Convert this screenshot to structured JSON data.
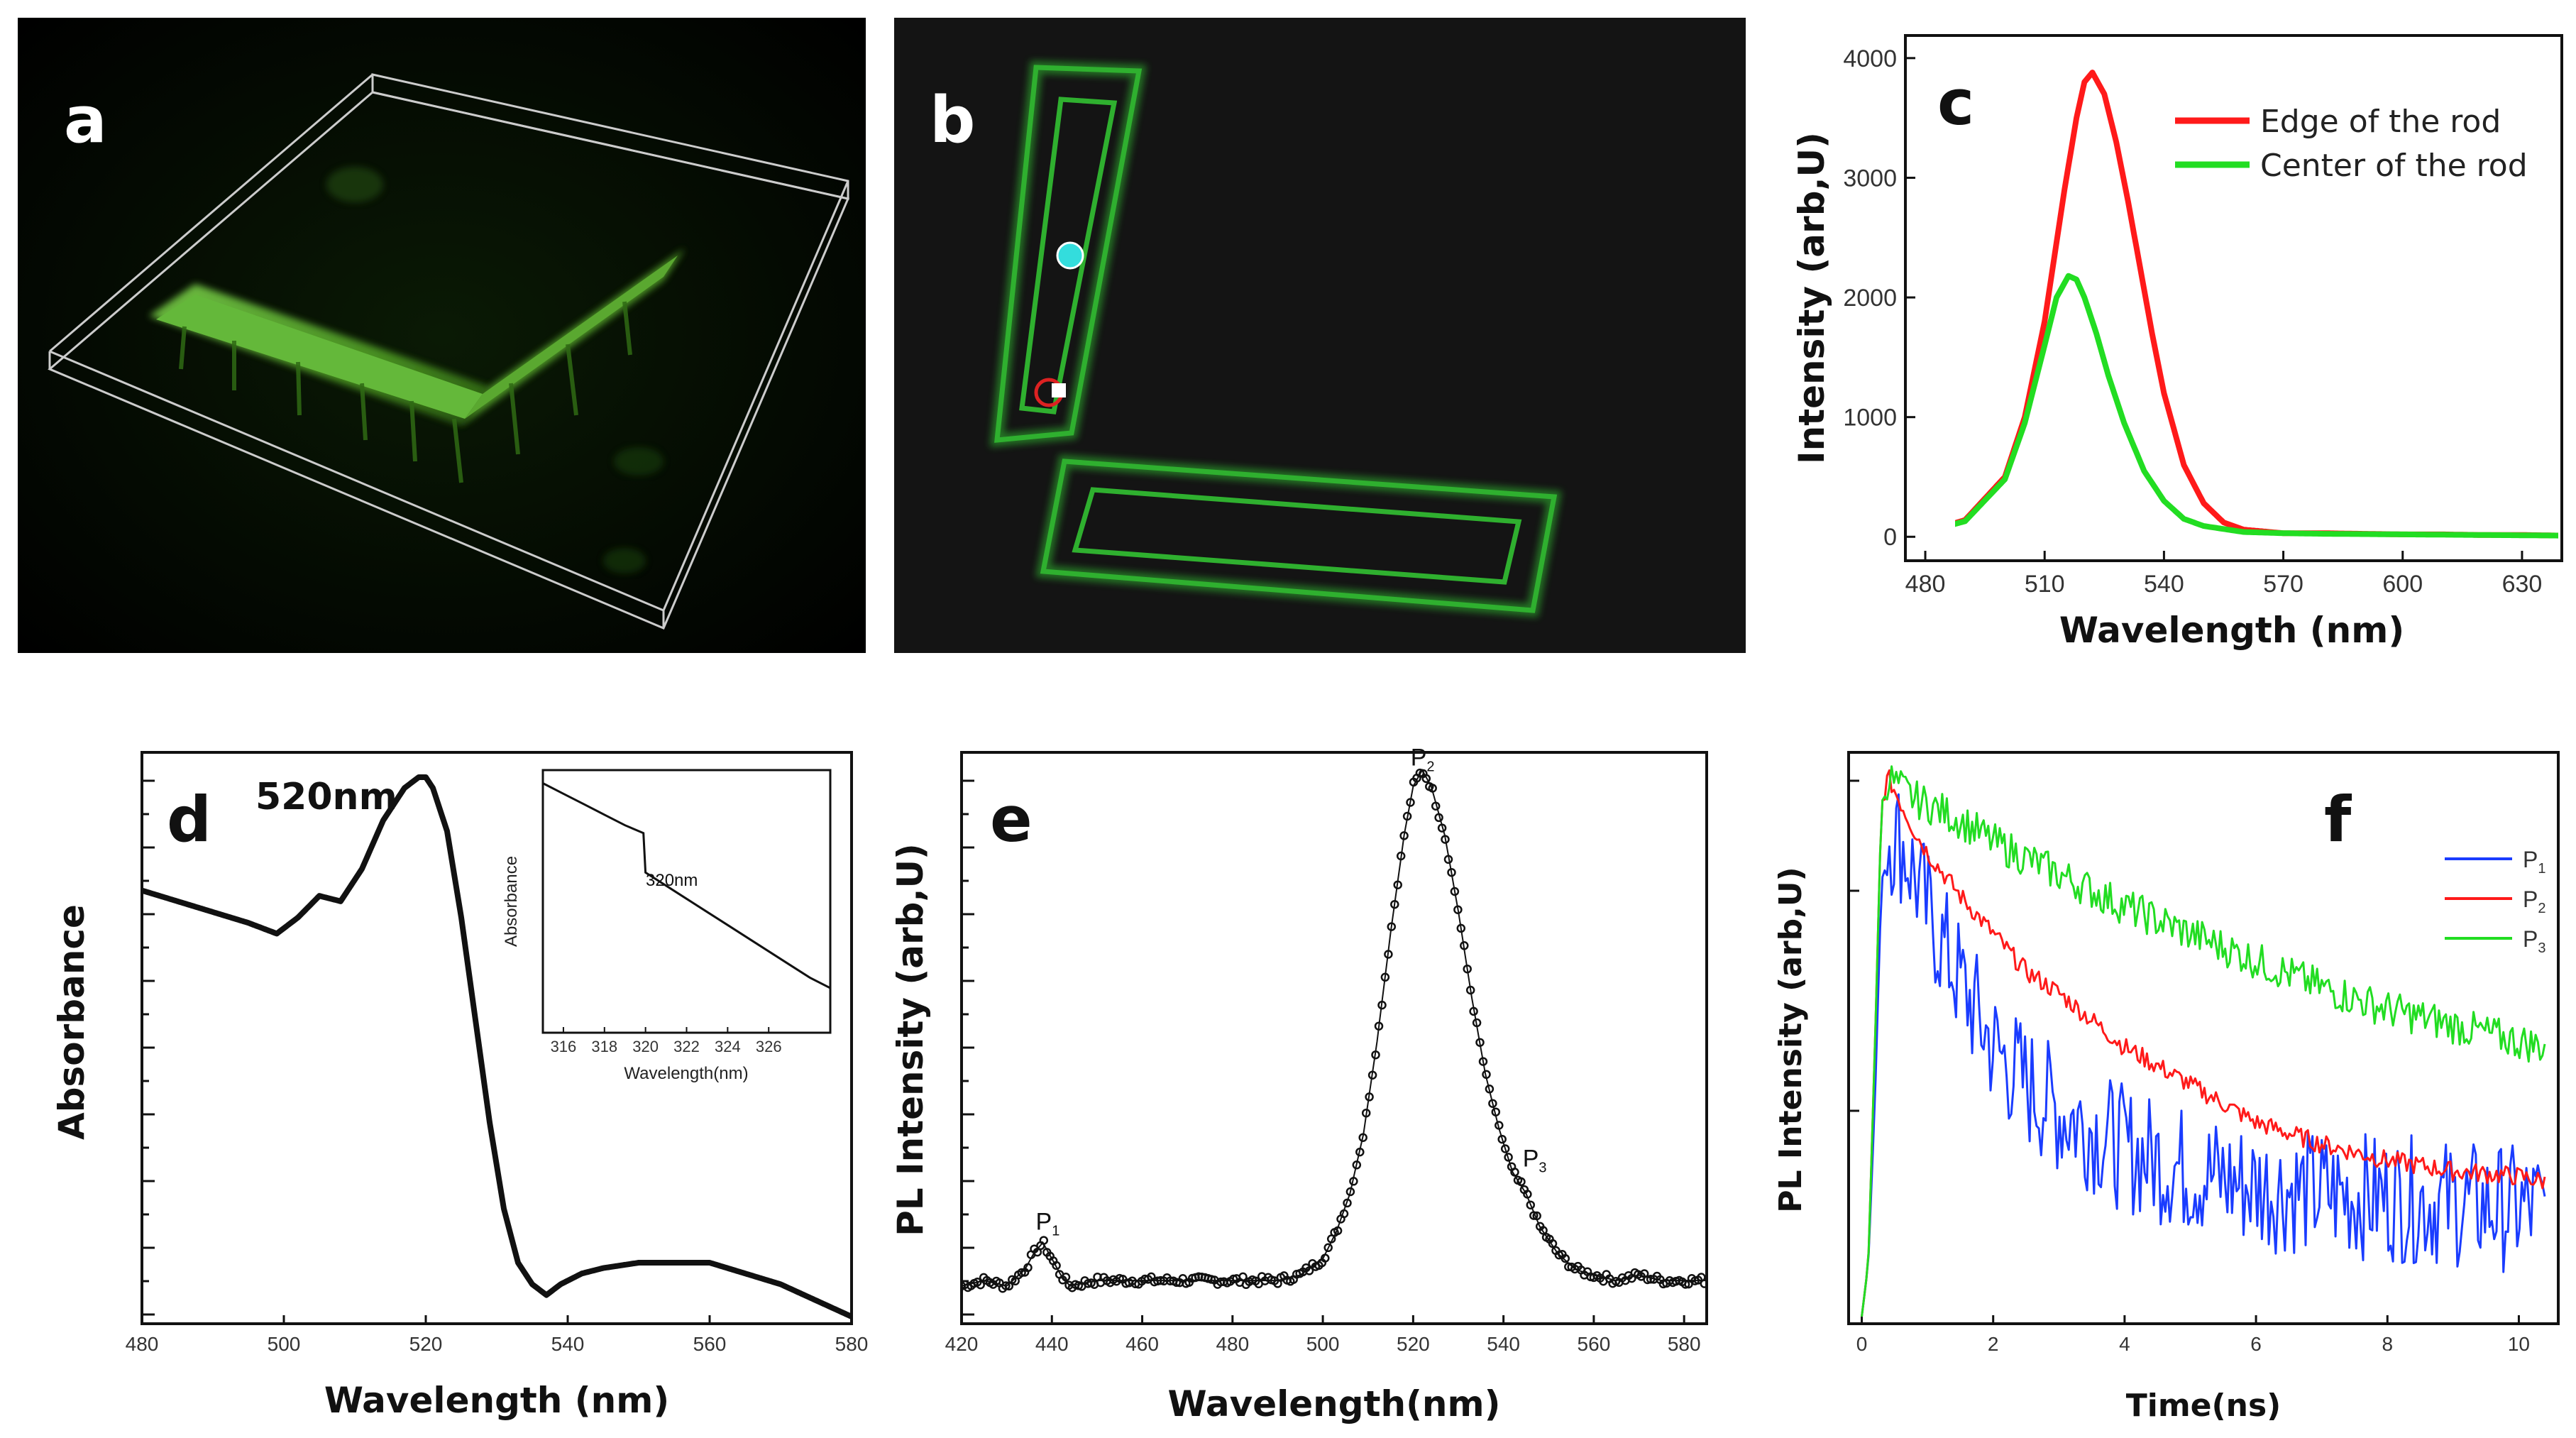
{
  "panels": {
    "a": {
      "letter": "a"
    },
    "b": {
      "letter": "b"
    },
    "c": {
      "letter": "c"
    },
    "d": {
      "letter": "d",
      "peak_label": "520nm"
    },
    "e": {
      "letter": "e"
    },
    "f": {
      "letter": "f"
    }
  },
  "colors": {
    "red": "#ff1a1a",
    "green": "#22dd22",
    "blue": "#1a3cff",
    "black": "#111111"
  },
  "chart_data": [
    {
      "id": "c",
      "type": "line",
      "xlabel": "Wavelength (nm)",
      "ylabel": "Intensity (arb,U)",
      "xlim": [
        475,
        640
      ],
      "ylim": [
        -200,
        4100
      ],
      "xticks": [
        480,
        510,
        540,
        570,
        600,
        630
      ],
      "yticks": [
        0,
        1000,
        2000,
        3000,
        4000
      ],
      "legend_position": "top-right",
      "series": [
        {
          "name": "Edge of the rod",
          "color": "#ff1a1a",
          "x": [
            480,
            490,
            500,
            505,
            510,
            515,
            518,
            520,
            522,
            525,
            528,
            531,
            534,
            537,
            540,
            545,
            550,
            555,
            560,
            570,
            580,
            590,
            600,
            610,
            620,
            630,
            640
          ],
          "values": [
            40,
            140,
            500,
            1000,
            1800,
            2900,
            3500,
            3800,
            3880,
            3700,
            3300,
            2800,
            2250,
            1700,
            1200,
            600,
            280,
            120,
            60,
            30,
            30,
            25,
            20,
            20,
            15,
            15,
            10
          ]
        },
        {
          "name": "Center of the rod",
          "color": "#22dd22",
          "x": [
            480,
            490,
            500,
            505,
            510,
            513,
            516,
            518,
            520,
            523,
            526,
            530,
            535,
            540,
            545,
            550,
            560,
            570,
            580,
            600,
            620,
            640
          ],
          "values": [
            40,
            130,
            480,
            950,
            1600,
            2000,
            2180,
            2150,
            2000,
            1700,
            1350,
            950,
            550,
            300,
            150,
            90,
            40,
            30,
            25,
            20,
            15,
            10
          ]
        }
      ]
    },
    {
      "id": "d",
      "type": "line",
      "xlabel": "Wavelength (nm)",
      "ylabel": "Absorbance",
      "xlim": [
        480,
        580
      ],
      "ylim": [
        0,
        1
      ],
      "xticks": [
        480,
        500,
        520,
        540,
        560,
        580
      ],
      "series": [
        {
          "name": "",
          "color": "#111111",
          "x": [
            480,
            485,
            490,
            495,
            499,
            502,
            505,
            508,
            511,
            514,
            517,
            519,
            520,
            521,
            523,
            525,
            527,
            529,
            531,
            533,
            535,
            537,
            539,
            542,
            545,
            550,
            555,
            560,
            565,
            570,
            575,
            580
          ],
          "values": [
            0.79,
            0.77,
            0.75,
            0.73,
            0.71,
            0.74,
            0.78,
            0.77,
            0.83,
            0.92,
            0.98,
            1.0,
            1.0,
            0.98,
            0.9,
            0.74,
            0.55,
            0.36,
            0.2,
            0.1,
            0.06,
            0.04,
            0.06,
            0.08,
            0.09,
            0.1,
            0.1,
            0.1,
            0.08,
            0.06,
            0.03,
            0.0
          ]
        }
      ],
      "inset": {
        "xlabel": "Wavelength(nm)",
        "ylabel": "Absorbance",
        "annotation": "320nm",
        "xlim": [
          315,
          329
        ],
        "ylim": [
          0,
          1
        ],
        "xticks": [
          316,
          318,
          320,
          322,
          324,
          326
        ],
        "x": [
          315,
          316,
          317,
          318,
          319,
          319.9,
          320.0,
          321,
          322,
          323,
          324,
          325,
          326,
          327,
          328,
          329
        ],
        "values": [
          0.95,
          0.91,
          0.87,
          0.83,
          0.79,
          0.76,
          0.61,
          0.56,
          0.51,
          0.46,
          0.41,
          0.36,
          0.31,
          0.26,
          0.21,
          0.17
        ]
      }
    },
    {
      "id": "e",
      "type": "scatter",
      "xlabel": "Wavelength(nm)",
      "ylabel": "PL Intensity (arb,U)",
      "xlim": [
        420,
        585
      ],
      "ylim": [
        0,
        1
      ],
      "xticks": [
        420,
        440,
        460,
        480,
        500,
        520,
        540,
        560,
        580
      ],
      "annotations": [
        {
          "text": "P",
          "sub": "1",
          "x": 438
        },
        {
          "text": "P",
          "sub": "2",
          "x": 521
        },
        {
          "text": "P",
          "sub": "3",
          "x": 543
        }
      ],
      "series": [
        {
          "name": "",
          "color": "#111111",
          "x": [
            420,
            425,
            430,
            434,
            436,
            438,
            440,
            442,
            444,
            450,
            460,
            470,
            480,
            490,
            495,
            500,
            503,
            506,
            509,
            512,
            515,
            518,
            520,
            522,
            524,
            527,
            530,
            533,
            536,
            539,
            542,
            545,
            548,
            552,
            556,
            560,
            565,
            570,
            575,
            580,
            585
          ],
          "values": [
            0.05,
            0.06,
            0.05,
            0.08,
            0.11,
            0.13,
            0.1,
            0.07,
            0.05,
            0.06,
            0.06,
            0.06,
            0.06,
            0.06,
            0.07,
            0.1,
            0.15,
            0.22,
            0.33,
            0.5,
            0.7,
            0.88,
            0.97,
            1.0,
            0.97,
            0.88,
            0.74,
            0.58,
            0.44,
            0.34,
            0.26,
            0.22,
            0.16,
            0.11,
            0.08,
            0.07,
            0.06,
            0.07,
            0.06,
            0.06,
            0.06
          ]
        }
      ]
    },
    {
      "id": "f",
      "type": "line",
      "xlabel": "Time(ns)",
      "ylabel": "PL Intensity (arb,U)",
      "xlim": [
        -0.2,
        10.6
      ],
      "ylim": [
        0,
        1
      ],
      "xticks": [
        0,
        2,
        4,
        6,
        8,
        10
      ],
      "legend_position": "top-right",
      "series": [
        {
          "name": "P1",
          "color": "#1a3cff",
          "x": [
            0,
            0.1,
            0.2,
            0.3,
            0.4,
            0.6,
            0.8,
            1.0,
            1.5,
            2,
            2.5,
            3,
            3.5,
            4,
            5,
            6,
            7,
            8,
            9,
            10,
            10.4
          ],
          "values": [
            0.0,
            0.1,
            0.4,
            0.8,
            0.9,
            0.88,
            0.82,
            0.75,
            0.62,
            0.5,
            0.43,
            0.38,
            0.35,
            0.31,
            0.27,
            0.24,
            0.23,
            0.22,
            0.21,
            0.2,
            0.2
          ]
        },
        {
          "name": "P2",
          "color": "#ff1a1a",
          "x": [
            0,
            0.1,
            0.2,
            0.3,
            0.4,
            0.6,
            0.8,
            1.0,
            1.5,
            2,
            2.5,
            3,
            3.5,
            4,
            5,
            6,
            7,
            8,
            9,
            10,
            10.4
          ],
          "values": [
            0.0,
            0.1,
            0.5,
            0.95,
            1.0,
            0.95,
            0.9,
            0.86,
            0.78,
            0.71,
            0.64,
            0.6,
            0.55,
            0.5,
            0.43,
            0.36,
            0.32,
            0.29,
            0.27,
            0.26,
            0.25
          ]
        },
        {
          "name": "P3",
          "color": "#22dd22",
          "x": [
            0,
            0.1,
            0.2,
            0.3,
            0.4,
            0.6,
            0.8,
            1.0,
            1.5,
            2,
            2.5,
            3,
            3.5,
            4,
            5,
            6,
            7,
            8,
            9,
            10,
            10.4
          ],
          "values": [
            0.0,
            0.1,
            0.5,
            0.95,
            1.0,
            0.98,
            0.96,
            0.95,
            0.92,
            0.88,
            0.85,
            0.82,
            0.79,
            0.76,
            0.71,
            0.66,
            0.61,
            0.57,
            0.54,
            0.51,
            0.5
          ]
        }
      ]
    }
  ]
}
